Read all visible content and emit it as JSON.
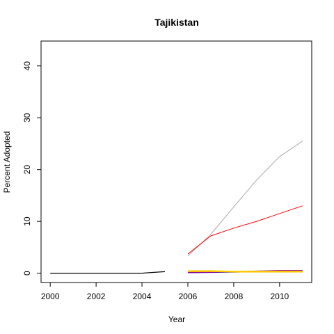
{
  "chart_data": {
    "type": "line",
    "title": "Tajikistan",
    "xlabel": "Year",
    "ylabel": "Percent Adopted",
    "xlim": [
      1999.6,
      2011.4
    ],
    "ylim": [
      -1.8,
      44.8
    ],
    "x_ticks": [
      2000,
      2002,
      2004,
      2006,
      2008,
      2010
    ],
    "x_tick_labels": [
      "2000",
      "2002",
      "2004",
      "2006",
      "2008",
      "2010"
    ],
    "y_ticks": [
      0,
      10,
      20,
      30,
      40
    ],
    "y_tick_labels": [
      "0",
      "10",
      "20",
      "30",
      "40"
    ],
    "grid": false,
    "legend": "none",
    "series": [
      {
        "color": "#000000",
        "width": 1.2,
        "x": [
          2000,
          2001,
          2002,
          2003,
          2004,
          2004.3,
          2005
        ],
        "y": [
          0,
          0,
          0,
          0,
          0,
          0.1,
          0.3
        ]
      },
      {
        "color": "#aaaaaa",
        "width": 1,
        "x": [
          2006,
          2007,
          2008,
          2009,
          2010,
          2011
        ],
        "y": [
          3.3,
          7.5,
          12.8,
          18,
          22.5,
          25.5
        ]
      },
      {
        "color": "#ff0000",
        "width": 1,
        "x": [
          2006,
          2007,
          2008,
          2009,
          2010,
          2011
        ],
        "y": [
          3.7,
          7.2,
          8.7,
          10,
          11.5,
          13
        ]
      },
      {
        "color": "#0000cc",
        "width": 1.2,
        "x": [
          2006,
          2007,
          2008,
          2009,
          2010,
          2011
        ],
        "y": [
          0.1,
          0.15,
          0.2,
          0.3,
          0.35,
          0.4
        ]
      },
      {
        "color": "#8b008b",
        "width": 1.5,
        "x": [
          2006,
          2007,
          2008,
          2009,
          2010,
          2011
        ],
        "y": [
          0.15,
          0.2,
          0.3,
          0.4,
          0.5,
          0.5
        ]
      },
      {
        "color": "#ffcc00",
        "width": 2.5,
        "x": [
          2006,
          2007,
          2008,
          2009,
          2010,
          2011
        ],
        "y": [
          0.4,
          0.4,
          0.3,
          0.3,
          0.3,
          0.3
        ]
      }
    ]
  }
}
